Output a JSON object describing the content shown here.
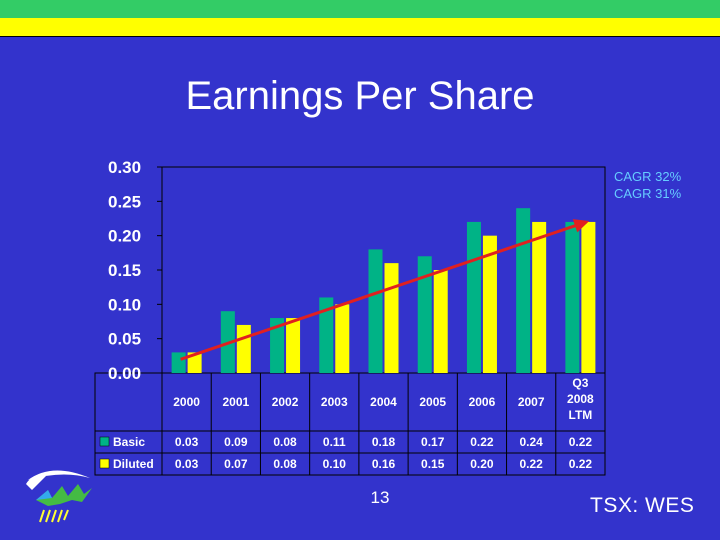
{
  "slide": {
    "title": "Earnings Per Share",
    "page_number": "13",
    "ticker": "TSX: WES"
  },
  "colors": {
    "background": "#3333cc",
    "basic": "#00b386",
    "diluted": "#ffff00",
    "trend": "#e02020",
    "annotation": "#66ccff"
  },
  "chart_data": {
    "type": "bar",
    "title": "",
    "xlabel": "",
    "ylabel": "",
    "ylim": [
      0,
      0.3
    ],
    "y_ticks": [
      "0.00",
      "0.05",
      "0.10",
      "0.15",
      "0.20",
      "0.25",
      "0.30"
    ],
    "categories": [
      "2000",
      "2001",
      "2002",
      "2003",
      "2004",
      "2005",
      "2006",
      "2007",
      "Q3 2008 LTM"
    ],
    "series": [
      {
        "name": "Basic",
        "values": [
          0.03,
          0.09,
          0.08,
          0.11,
          0.18,
          0.17,
          0.22,
          0.24,
          0.22
        ],
        "labels": [
          "0.03",
          "0.09",
          "0.08",
          "0.11",
          "0.18",
          "0.17",
          "0.22",
          "0.24",
          "0.22"
        ]
      },
      {
        "name": "Diluted",
        "values": [
          0.03,
          0.07,
          0.08,
          0.1,
          0.16,
          0.15,
          0.2,
          0.22,
          0.22
        ],
        "labels": [
          "0.03",
          "0.07",
          "0.08",
          "0.10",
          "0.16",
          "0.15",
          "0.20",
          "0.22",
          "0.22"
        ]
      }
    ],
    "trend_line": {
      "from": [
        "2000",
        0.02
      ],
      "to": [
        "Q3 2008 LTM",
        0.22
      ]
    },
    "annotations": [
      "CAGR 32%",
      "CAGR 31%"
    ],
    "legend": "data-table",
    "grid": false
  }
}
